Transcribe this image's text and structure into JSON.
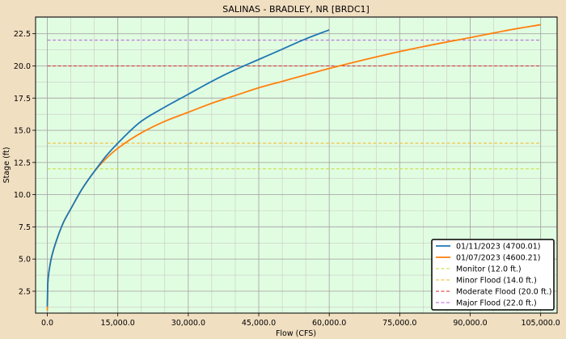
{
  "chart_data": {
    "type": "line",
    "title": "SALINAS - BRADLEY, NR [BRDC1]",
    "xlabel": "Flow (CFS)",
    "ylabel": "Stage (ft)",
    "xlim": [
      -2500,
      108500
    ],
    "ylim": [
      0.8,
      23.8
    ],
    "x_ticks": [
      0,
      15000,
      30000,
      45000,
      60000,
      75000,
      90000,
      105000
    ],
    "x_tick_labels": [
      "0.0",
      "15,000.0",
      "30,000.0",
      "45,000.0",
      "60,000.0",
      "75,000.0",
      "90,000.0",
      "105,000.0"
    ],
    "y_ticks": [
      2.5,
      5.0,
      7.5,
      10.0,
      12.5,
      15.0,
      17.5,
      20.0,
      22.5
    ],
    "y_tick_labels": [
      "2.5",
      "5.0",
      "7.5",
      "10.0",
      "12.5",
      "15.0",
      "17.5",
      "20.0",
      "22.5"
    ],
    "grid": true,
    "legend_position": "bottom-right",
    "plot_background": "#e1fde1",
    "series": [
      {
        "name": "01/11/2023 (4700.01)",
        "color": "#1f77b4",
        "style": "solid",
        "x": [
          0,
          100,
          300,
          600,
          1000,
          2000,
          3500,
          5000,
          7500,
          10000,
          12500,
          15000,
          20000,
          25000,
          30000,
          35000,
          40000,
          45000,
          50000,
          55000,
          60000
        ],
        "y": [
          1.3,
          3.1,
          3.9,
          4.6,
          5.3,
          6.5,
          7.9,
          8.9,
          10.5,
          11.8,
          13.0,
          14.0,
          15.7,
          16.8,
          17.8,
          18.8,
          19.7,
          20.5,
          21.3,
          22.1,
          22.8
        ]
      },
      {
        "name": "01/07/2023 (4600.21)",
        "color": "#ff7f0e",
        "style": "solid",
        "x": [
          0,
          100,
          300,
          600,
          1000,
          2000,
          3500,
          5000,
          7500,
          10000,
          12500,
          15000,
          20000,
          25000,
          30000,
          35000,
          40000,
          45000,
          50000,
          60000,
          70000,
          80000,
          90000,
          100000,
          105000
        ],
        "y": [
          1.0,
          3.1,
          3.9,
          4.6,
          5.3,
          6.5,
          7.9,
          8.9,
          10.5,
          11.8,
          12.8,
          13.6,
          14.8,
          15.7,
          16.4,
          17.1,
          17.7,
          18.3,
          18.8,
          19.8,
          20.7,
          21.5,
          22.2,
          22.9,
          23.2
        ]
      }
    ],
    "thresholds": [
      {
        "name": "Monitor (12.0 ft.)",
        "value": 12.0,
        "color": "#c6dc38",
        "style": "dashed"
      },
      {
        "name": "Minor Flood (14.0 ft.)",
        "value": 14.0,
        "color": "#f5b428",
        "style": "dashed"
      },
      {
        "name": "Moderate Flood (20.0 ft.)",
        "value": 20.0,
        "color": "#d62728",
        "style": "dashed"
      },
      {
        "name": "Major Flood (22.0 ft.)",
        "value": 22.0,
        "color": "#b65ee0",
        "style": "dashed"
      }
    ]
  }
}
